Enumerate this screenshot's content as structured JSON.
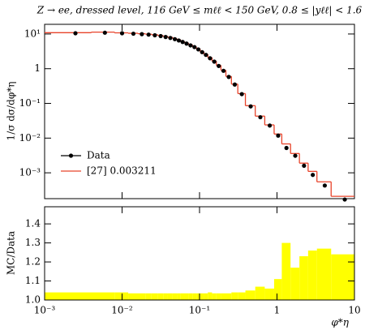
{
  "chart_data": {
    "type": "histogram",
    "title": "Z → ee, dressed level, 116 GeV ≤ mℓℓ < 150 GeV, 0.8 ≤ |yℓℓ| < 1.6",
    "ylabel": "1/σ dσ/dφ*η",
    "xlabel": "φ*η",
    "log_x": true,
    "log_y": true,
    "xlim": [
      0.001,
      10
    ],
    "xticks": [
      {
        "value": 0.001,
        "label": "10⁻³"
      },
      {
        "value": 0.01,
        "label": "10⁻²"
      },
      {
        "value": 0.1,
        "label": "10⁻¹"
      },
      1,
      10
    ],
    "ylim": [
      0.00018,
      19
    ],
    "yticks": [
      {
        "value": 0.001,
        "label": "10⁻³"
      },
      {
        "value": 0.01,
        "label": "10⁻²"
      },
      {
        "value": 0.1,
        "label": "10⁻¹"
      },
      1,
      {
        "value": 10,
        "label": "10¹"
      }
    ],
    "series": [
      {
        "name": "Data",
        "color": "#000000",
        "x": [
          0.0025,
          0.006,
          0.01,
          0.014,
          0.018,
          0.022,
          0.0265,
          0.0315,
          0.0365,
          0.042,
          0.048,
          0.054,
          0.0605,
          0.068,
          0.0765,
          0.086,
          0.0965,
          0.108,
          0.121,
          0.1365,
          0.155,
          0.177,
          0.204,
          0.2385,
          0.285,
          0.3515,
          0.4575,
          0.6095,
          0.8065,
          1.0355,
          1.3245,
          1.7215,
          2.2345,
          2.8995,
          4.1385,
          7.5
        ],
        "values": [
          10.5,
          10.9,
          10.5,
          10.2,
          9.9,
          9.6,
          9.2,
          8.7,
          8.2,
          7.7,
          7.1,
          6.5,
          5.9,
          5.3,
          4.7,
          4.2,
          3.6,
          3.0,
          2.5,
          2.0,
          1.6,
          1.2,
          0.87,
          0.58,
          0.35,
          0.185,
          0.082,
          0.04,
          0.023,
          0.0118,
          0.0052,
          0.0031,
          0.0016,
          0.00087,
          0.00043,
          0.00017
        ]
      },
      {
        "name": "[27] 0.003211",
        "color": "#e8432a",
        "bins": [
          0.001,
          0.004,
          0.008,
          0.012,
          0.016,
          0.02,
          0.024,
          0.029,
          0.034,
          0.039,
          0.045,
          0.051,
          0.057,
          0.064,
          0.072,
          0.081,
          0.091,
          0.102,
          0.114,
          0.128,
          0.145,
          0.165,
          0.189,
          0.219,
          0.258,
          0.312,
          0.391,
          0.524,
          0.695,
          0.918,
          1.153,
          1.496,
          1.947,
          2.522,
          3.277,
          5,
          10
        ],
        "values": [
          10.9,
          11.3,
          10.8,
          10.5,
          10.2,
          9.9,
          9.5,
          9.0,
          8.5,
          8.0,
          7.4,
          6.8,
          6.1,
          5.5,
          4.9,
          4.3,
          3.7,
          3.1,
          2.6,
          2.1,
          1.65,
          1.25,
          0.9,
          0.6,
          0.36,
          0.192,
          0.086,
          0.043,
          0.024,
          0.0131,
          0.0068,
          0.0036,
          0.0019,
          0.0011,
          0.00055,
          0.00021
        ]
      }
    ],
    "legend": "upper-left",
    "ratio": {
      "ylabel": "MC/Data",
      "ylim": [
        1.0,
        1.49
      ],
      "yticks": [
        {
          "value": 1.0,
          "label": "1.0"
        },
        {
          "value": 1.1,
          "label": "1.1"
        },
        {
          "value": 1.2,
          "label": "1.2"
        },
        {
          "value": 1.3,
          "label": "1.3"
        },
        {
          "value": 1.4,
          "label": "1.4"
        }
      ],
      "color": "#ffff00",
      "values": [
        1.04,
        1.04,
        1.04,
        1.035,
        1.035,
        1.035,
        1.035,
        1.035,
        1.035,
        1.035,
        1.035,
        1.035,
        1.035,
        1.035,
        1.035,
        1.035,
        1.035,
        1.035,
        1.035,
        1.04,
        1.035,
        1.035,
        1.035,
        1.035,
        1.04,
        1.04,
        1.05,
        1.07,
        1.06,
        1.11,
        1.3,
        1.17,
        1.23,
        1.26,
        1.27,
        1.24
      ]
    }
  }
}
